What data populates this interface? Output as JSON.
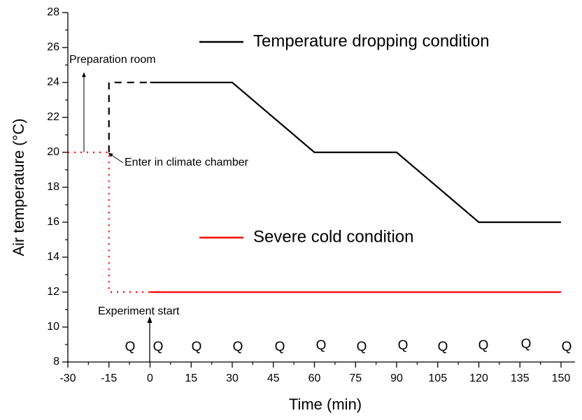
{
  "chart_data": {
    "type": "line",
    "xlabel": "Time (min)",
    "ylabel": "Air temperature (°C)",
    "xlim": [
      -30,
      150
    ],
    "ylim": [
      8,
      28
    ],
    "xticks": [
      -30,
      -15,
      0,
      15,
      30,
      45,
      60,
      75,
      90,
      105,
      120,
      135,
      150
    ],
    "yticks": [
      8,
      10,
      12,
      14,
      16,
      18,
      20,
      22,
      24,
      26,
      28
    ],
    "series": [
      {
        "name": "Temperature dropping condition",
        "color": "#000000",
        "style": "solid",
        "x": [
          0,
          30,
          60,
          90,
          120,
          150
        ],
        "values": [
          24,
          24,
          20,
          20,
          16,
          16
        ]
      },
      {
        "color": "#000000",
        "style": "dashed",
        "x": [
          -15,
          -15,
          0
        ],
        "values": [
          20,
          24,
          24
        ]
      },
      {
        "name": "Severe cold condition",
        "color": "#ff0000",
        "style": "solid",
        "x": [
          0,
          150
        ],
        "values": [
          12,
          12
        ]
      },
      {
        "color": "#ff0000",
        "style": "dotted",
        "x": [
          -30,
          -15,
          -15,
          0
        ],
        "values": [
          20,
          20,
          12,
          12
        ]
      }
    ],
    "annotations": [
      "Preparation room",
      "Enter in climate chamber",
      "Experiment start"
    ],
    "markers": [
      "Q",
      "Q",
      "Q",
      "Q",
      "Q",
      "Q",
      "Q",
      "Q",
      "Q",
      "Q",
      "Q",
      "Q"
    ]
  }
}
